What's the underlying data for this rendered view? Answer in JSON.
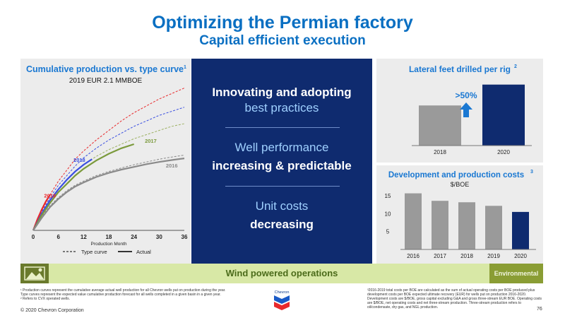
{
  "header": {
    "title": "Optimizing the Permian factory",
    "subtitle": "Capital efficient execution"
  },
  "left_panel": {
    "title": "Cumulative production vs. type curve",
    "title_sup": "1",
    "subtitle": "2019 EUR 2.1 MMBOE"
  },
  "center_panel": {
    "block1_line1": "Innovating and adopting",
    "block1_line2": "best practices",
    "block2_line1": "Well performance",
    "block2_line2": "increasing & predictable",
    "block3_line1": "Unit costs",
    "block3_line2": "decreasing"
  },
  "right_top": {
    "title": "Lateral feet drilled per rig",
    "title_sup": "2",
    "callout": ">50%"
  },
  "right_bottom": {
    "title": "Development and production costs",
    "title_sup": "3",
    "subtitle": "$/BOE"
  },
  "bottom_bar": {
    "label": "Wind powered operations",
    "tag": "Environmental"
  },
  "footnotes": {
    "left": [
      "¹ Production curves represent the cumulative average actual well production for all Chevron wells put on production during the year.",
      "  Type curves represent the expected value cumulative production forecast for all wells completed in a given basin in a given year.",
      "² Refers to CVX operated wells."
    ],
    "right": "³2016-2019 total costs per BOE are calculated as the sum of actual operating costs per BOE produced plus development costs per BOE expected ultimate recovery (EUR) for wells put on production 2016-2020. Development costs are $/BOE, gross capital excluding G&A and gross three-stream EUR BOE. Operating costs are $/BOE, net operating costs and net three-stream production. Three-stream production refers to oil/condensate, dry gas, and NGL production.",
    "copyright": "© 2020 Chevron Corporation",
    "page": "76",
    "logo_text": "Chevron"
  },
  "colors": {
    "accent_blue": "#0a6fc2",
    "navy": "#0f2b6f",
    "bar_gray": "#9a9a9a",
    "red": "#e8292c",
    "blue": "#3a4fe0",
    "green": "#7b9a3c",
    "gray_line": "#8a8a8a"
  },
  "chart_data": [
    {
      "type": "line",
      "title": "Cumulative production vs. type curve",
      "subtitle": "2019 EUR 2.1 MMBOE",
      "xlabel": "Production Month",
      "x_ticks": [
        0,
        6,
        12,
        18,
        24,
        30,
        36
      ],
      "xlim": [
        0,
        36
      ],
      "legend": [
        "Type curve",
        "Actual"
      ],
      "legend_position": "bottom",
      "series": [
        {
          "name": "2019",
          "style": "dashed",
          "color": "#e8292c",
          "x": [
            0,
            2,
            4,
            6,
            8,
            10,
            12,
            15,
            18,
            21,
            24,
            27,
            30,
            33,
            36
          ],
          "y": [
            0,
            0.07,
            0.13,
            0.18,
            0.22,
            0.26,
            0.29,
            0.33,
            0.365,
            0.4,
            0.43,
            0.455,
            0.48,
            0.5,
            0.52
          ]
        },
        {
          "name": "2018",
          "style": "dashed",
          "color": "#3a4fe0",
          "x": [
            0,
            2,
            4,
            6,
            8,
            10,
            12,
            15,
            18,
            21,
            24,
            27,
            30,
            33,
            36
          ],
          "y": [
            0,
            0.065,
            0.12,
            0.165,
            0.2,
            0.235,
            0.265,
            0.3,
            0.33,
            0.355,
            0.38,
            0.4,
            0.42,
            0.435,
            0.45
          ]
        },
        {
          "name": "2017",
          "style": "dashed",
          "color": "#9bb060",
          "x": [
            0,
            2,
            4,
            6,
            8,
            10,
            12,
            15,
            18,
            21,
            24,
            27,
            30,
            33,
            36
          ],
          "y": [
            0,
            0.06,
            0.11,
            0.15,
            0.185,
            0.215,
            0.24,
            0.27,
            0.295,
            0.315,
            0.335,
            0.35,
            0.365,
            0.38,
            0.39
          ]
        },
        {
          "name": "2016",
          "style": "dashed",
          "color": "#8a8a8a",
          "x": [
            0,
            2,
            4,
            6,
            8,
            10,
            12,
            15,
            18,
            21,
            24,
            27,
            30,
            33,
            36
          ],
          "y": [
            0,
            0.05,
            0.09,
            0.12,
            0.145,
            0.165,
            0.18,
            0.2,
            0.215,
            0.228,
            0.24,
            0.25,
            0.26,
            0.268,
            0.275
          ]
        },
        {
          "name": "2019 actual",
          "style": "solid",
          "color": "#e8292c",
          "x": [
            0,
            1,
            2,
            3,
            4
          ],
          "y": [
            0,
            0.04,
            0.075,
            0.105,
            0.13
          ]
        },
        {
          "name": "2018 actual",
          "style": "solid",
          "color": "#3a4fe0",
          "x": [
            0,
            2,
            4,
            6,
            8,
            10,
            12,
            14
          ],
          "y": [
            0,
            0.06,
            0.11,
            0.15,
            0.185,
            0.215,
            0.24,
            0.26
          ]
        },
        {
          "name": "2017 actual",
          "style": "solid",
          "color": "#7b9a3c",
          "x": [
            0,
            2,
            4,
            6,
            8,
            10,
            12,
            15,
            18,
            21,
            24
          ],
          "y": [
            0,
            0.055,
            0.1,
            0.14,
            0.17,
            0.2,
            0.225,
            0.255,
            0.28,
            0.3,
            0.315
          ]
        },
        {
          "name": "2016 actual",
          "style": "solid",
          "color": "#8a8a8a",
          "x": [
            0,
            2,
            4,
            6,
            8,
            10,
            12,
            15,
            18,
            21,
            24,
            27,
            30,
            33,
            36
          ],
          "y": [
            0,
            0.045,
            0.085,
            0.115,
            0.14,
            0.16,
            0.175,
            0.195,
            0.21,
            0.222,
            0.232,
            0.242,
            0.25,
            0.257,
            0.263
          ]
        }
      ],
      "series_labels": [
        "2019",
        "2018",
        "2017",
        "2016"
      ]
    },
    {
      "type": "bar",
      "title": "Lateral feet drilled per rig",
      "categories": [
        "2018",
        "2020"
      ],
      "values": [
        100,
        152
      ],
      "colors": [
        "#9a9a9a",
        "#0f2b6f"
      ],
      "annotation": ">50%"
    },
    {
      "type": "bar",
      "title": "Development and production costs",
      "ylabel": "$/BOE",
      "categories": [
        "2016",
        "2017",
        "2018",
        "2019",
        "2020"
      ],
      "values": [
        15.7,
        13.6,
        13.2,
        12.2,
        10.5
      ],
      "colors": [
        "#9a9a9a",
        "#9a9a9a",
        "#9a9a9a",
        "#9a9a9a",
        "#0f2b6f"
      ],
      "y_ticks": [
        5,
        10,
        15
      ],
      "ylim": [
        0,
        17
      ]
    }
  ]
}
